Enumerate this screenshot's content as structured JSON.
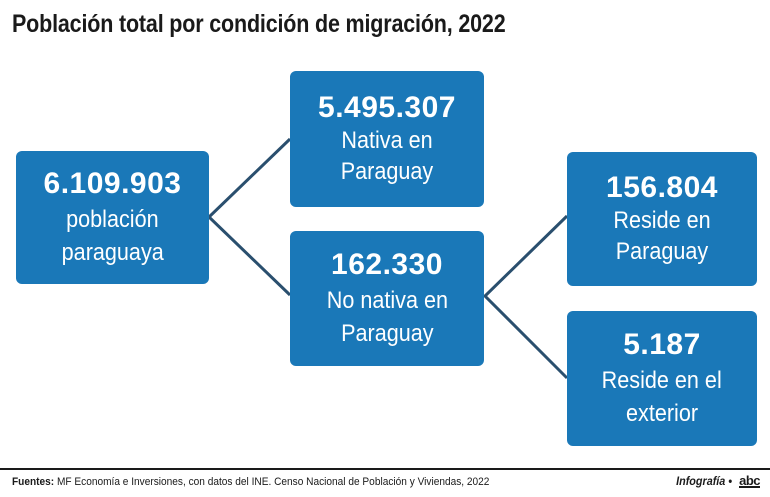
{
  "title": "Población total por condición de migración, 2022",
  "colors": {
    "box": "#1a78b8",
    "line": "#2a4f6e"
  },
  "nodes": {
    "total": {
      "value": "6.109.903",
      "label_1": "población",
      "label_2": "paraguaya"
    },
    "native": {
      "value": "5.495.307",
      "label_1": "Nativa en Paraguay"
    },
    "non_native": {
      "value": "162.330",
      "label_1": "No nativa en",
      "label_2": "Paraguay"
    },
    "resides_py": {
      "value": "156.804",
      "label_1": "Reside en Paraguay"
    },
    "resides_abroad": {
      "value": "5.187",
      "label_1": "Reside en el",
      "label_2": "exterior"
    }
  },
  "footer": {
    "sources_label": "Fuentes:",
    "sources_text": "MF Economía e Inversiones, con datos del INE. Censo Nacional de Población y Viviendas, 2022",
    "credit": "Infografía •",
    "logo": "abc"
  }
}
